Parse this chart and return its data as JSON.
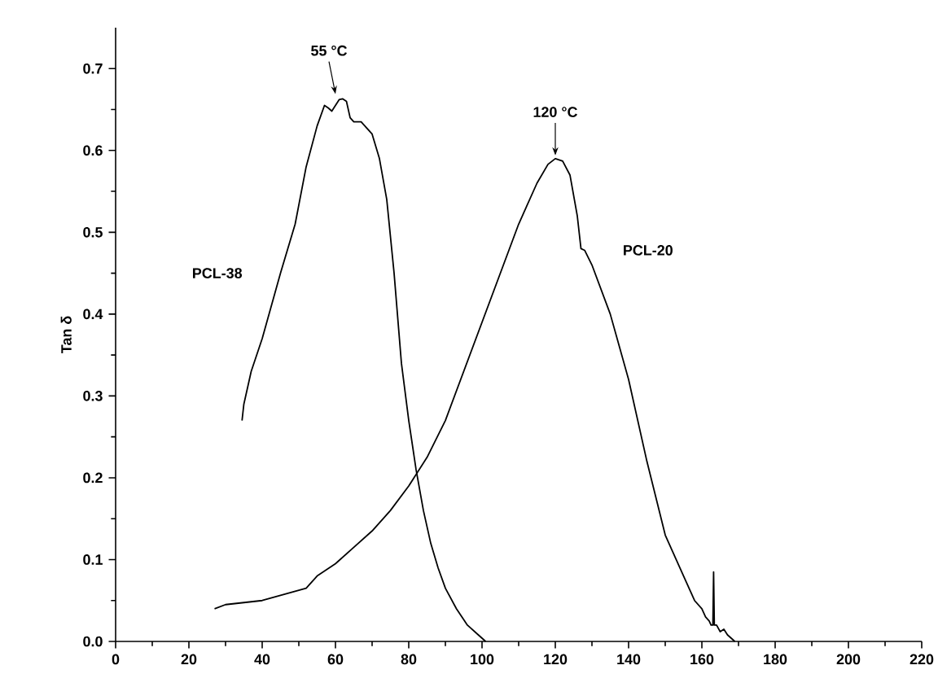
{
  "chart_data": {
    "type": "line",
    "ylabel": "Tan δ",
    "xlim": [
      0,
      220
    ],
    "xticks": [
      0,
      20,
      40,
      60,
      80,
      100,
      120,
      140,
      160,
      180,
      200,
      220
    ],
    "ylim": [
      0,
      0.75
    ],
    "yticks": [
      {
        "value": 0,
        "label": "0.0"
      },
      0.1,
      0.2,
      0.3,
      0.4,
      0.5,
      0.6,
      0.7
    ],
    "grid": false,
    "legend": false,
    "marker": "none",
    "line_style": "solid",
    "annotations": [
      {
        "text": "55 °C",
        "x": 60,
        "y": 0.665
      },
      {
        "text": "120 °C",
        "x": 120,
        "y": 0.59
      }
    ],
    "series": [
      {
        "name": "PCL-38",
        "color": "#000000",
        "x": [
          34.5,
          35,
          37,
          40,
          45,
          49,
          52,
          55,
          57,
          58,
          59,
          60,
          61,
          62,
          63,
          64,
          65,
          67,
          70,
          72,
          74,
          76,
          78,
          80,
          82,
          84,
          86,
          88,
          90,
          93,
          96,
          99,
          101
        ],
        "values": [
          0.27,
          0.29,
          0.33,
          0.37,
          0.45,
          0.51,
          0.58,
          0.63,
          0.655,
          0.652,
          0.648,
          0.655,
          0.662,
          0.663,
          0.66,
          0.64,
          0.635,
          0.635,
          0.62,
          0.59,
          0.54,
          0.45,
          0.34,
          0.27,
          0.21,
          0.16,
          0.12,
          0.09,
          0.065,
          0.04,
          0.02,
          0.008,
          0.0
        ]
      },
      {
        "name": "PCL-20",
        "color": "#000000",
        "x": [
          27,
          30,
          40,
          48,
          52,
          55,
          60,
          65,
          70,
          75,
          80,
          85,
          90,
          95,
          100,
          105,
          110,
          115,
          118,
          120,
          122,
          124,
          126,
          127,
          128,
          130,
          135,
          140,
          145,
          150,
          155,
          158,
          160,
          161,
          162,
          162.5,
          163,
          163.2,
          163.4,
          164,
          165,
          166,
          167,
          169
        ],
        "values": [
          0.04,
          0.045,
          0.05,
          0.06,
          0.065,
          0.08,
          0.095,
          0.115,
          0.135,
          0.16,
          0.19,
          0.225,
          0.27,
          0.33,
          0.39,
          0.45,
          0.51,
          0.56,
          0.583,
          0.59,
          0.587,
          0.57,
          0.52,
          0.48,
          0.478,
          0.46,
          0.4,
          0.32,
          0.22,
          0.13,
          0.08,
          0.05,
          0.04,
          0.03,
          0.025,
          0.02,
          0.02,
          0.085,
          0.02,
          0.02,
          0.012,
          0.015,
          0.008,
          0.0
        ]
      }
    ]
  }
}
